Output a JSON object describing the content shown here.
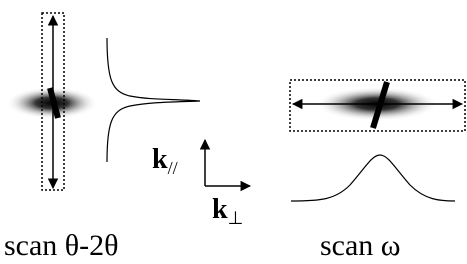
{
  "axes": {
    "parallel": {
      "symbol": "k",
      "subscript": "//"
    },
    "perpendicular": {
      "symbol": "k",
      "subscript": "⊥"
    }
  },
  "panels": [
    {
      "caption": "scan θ-2θ"
    },
    {
      "caption": "scan ω"
    }
  ]
}
